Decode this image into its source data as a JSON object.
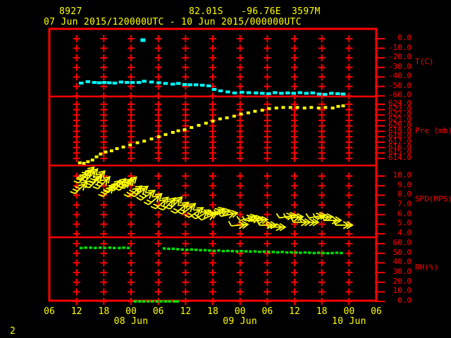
{
  "header": {
    "station_id": "8927",
    "latitude": "82.01S",
    "longitude": "-96.76E",
    "elevation": "3597M",
    "period": "07 Jun 2015/120000UTC - 10 Jun 2015/000000UTC"
  },
  "footer": {
    "page_number": "2"
  },
  "colors": {
    "background": "#000000",
    "axis_red": "#ff0000",
    "text_yellow": "#ffff00",
    "temperature_cyan": "#00ffff",
    "pressure_yellow": "#ffff00",
    "wind_yellow": "#ffff00",
    "humidity_green": "#00e000"
  },
  "chart_data": {
    "type": "line",
    "title": "Station 8927 time series 07 Jun 2015 12UTC - 10 Jun 2015 00UTC",
    "x_axis": {
      "tick_labels": [
        "06",
        "12",
        "18",
        "00",
        "06",
        "12",
        "18",
        "00",
        "06",
        "12",
        "18",
        "00",
        "06"
      ],
      "tick_interval_hours": 6,
      "date_labels": [
        {
          "label": "08 Jun",
          "tick_index": 3
        },
        {
          "label": "09 Jun",
          "tick_index": 7
        },
        {
          "label": "10 Jun",
          "tick_index": 11
        }
      ]
    },
    "panels": [
      {
        "name": "temperature",
        "unit_label": "T(C)",
        "color": "#00ffff",
        "ticks": [
          0.0,
          -10.0,
          -20.0,
          -30.0,
          -40.0,
          -50.0,
          -60.0
        ],
        "series": [
          [
            7.0,
            -46.5
          ],
          [
            8.5,
            -45.0
          ],
          [
            9.9,
            -45.8
          ],
          [
            11.0,
            -46.1
          ],
          [
            12.1,
            -45.8
          ],
          [
            13.2,
            -46.1
          ],
          [
            14.4,
            -46.5
          ],
          [
            15.8,
            -45.4
          ],
          [
            17.1,
            -45.8
          ],
          [
            18.3,
            -45.8
          ],
          [
            19.7,
            -45.8
          ],
          [
            20.9,
            -44.6
          ],
          [
            22.5,
            -45.4
          ],
          [
            24.1,
            -46.1
          ],
          [
            25.6,
            -46.9
          ],
          [
            27.2,
            -47.6
          ],
          [
            28.4,
            -46.9
          ],
          [
            29.8,
            -48.0
          ],
          [
            31.0,
            -48.3
          ],
          [
            32.3,
            -48.3
          ],
          [
            33.7,
            -48.7
          ],
          [
            35.1,
            -49.4
          ],
          [
            36.3,
            -53.1
          ],
          [
            37.7,
            -54.6
          ],
          [
            39.3,
            -55.7
          ],
          [
            40.8,
            -56.8
          ],
          [
            42.4,
            -56.1
          ],
          [
            43.9,
            -56.5
          ],
          [
            45.5,
            -56.8
          ],
          [
            46.9,
            -57.2
          ],
          [
            48.3,
            -57.6
          ],
          [
            49.7,
            -56.5
          ],
          [
            51.1,
            -57.2
          ],
          [
            52.5,
            -56.8
          ],
          [
            53.8,
            -57.2
          ],
          [
            55.2,
            -56.5
          ],
          [
            56.6,
            -57.2
          ],
          [
            58.0,
            -56.8
          ],
          [
            59.4,
            -57.9
          ],
          [
            60.7,
            -58.3
          ],
          [
            62.1,
            -57.2
          ],
          [
            63.5,
            -57.6
          ],
          [
            64.7,
            -57.9
          ]
        ],
        "outliers": [
          [
            20.6,
            -1.5
          ]
        ]
      },
      {
        "name": "pressure",
        "unit_label": "Pre (mb)",
        "color": "#ffff00",
        "ticks": [
          624.0,
          623.0,
          622.0,
          621.0,
          620.0,
          619.0,
          618.0,
          617.0,
          616.0,
          615.0,
          614.0
        ],
        "series": [
          [
            6.7,
            613.2
          ],
          [
            7.6,
            613.1
          ],
          [
            8.5,
            613.4
          ],
          [
            9.5,
            613.7
          ],
          [
            10.4,
            614.3
          ],
          [
            11.3,
            614.8
          ],
          [
            12.4,
            615.2
          ],
          [
            13.7,
            615.4
          ],
          [
            14.9,
            615.8
          ],
          [
            16.3,
            616.1
          ],
          [
            17.8,
            616.5
          ],
          [
            19.4,
            616.9
          ],
          [
            20.9,
            617.2
          ],
          [
            22.5,
            617.6
          ],
          [
            24.1,
            618.0
          ],
          [
            25.6,
            618.4
          ],
          [
            27.2,
            618.8
          ],
          [
            28.4,
            619.1
          ],
          [
            29.8,
            619.3
          ],
          [
            31.3,
            619.7
          ],
          [
            32.9,
            620.1
          ],
          [
            34.5,
            620.5
          ],
          [
            36.0,
            620.9
          ],
          [
            37.6,
            621.3
          ],
          [
            39.1,
            621.5
          ],
          [
            40.7,
            621.8
          ],
          [
            42.2,
            622.2
          ],
          [
            43.8,
            622.4
          ],
          [
            45.3,
            622.7
          ],
          [
            46.9,
            622.9
          ],
          [
            48.4,
            623.2
          ],
          [
            50.0,
            623.3
          ],
          [
            51.5,
            623.4
          ],
          [
            53.1,
            623.4
          ],
          [
            54.6,
            623.4
          ],
          [
            56.2,
            623.3
          ],
          [
            57.7,
            623.4
          ],
          [
            59.3,
            623.3
          ],
          [
            60.8,
            623.4
          ],
          [
            62.4,
            623.3
          ],
          [
            63.6,
            623.6
          ],
          [
            64.7,
            623.7
          ]
        ]
      },
      {
        "name": "wind_speed",
        "unit_label": "SPD(MPS)",
        "color": "#ffff00",
        "ticks": [
          10.0,
          9.0,
          8.0,
          7.0,
          6.0,
          5.0,
          4.0
        ],
        "barbs": [
          [
            7.0,
            8.8,
            45
          ],
          [
            7.8,
            9.9,
            45
          ],
          [
            8.5,
            10.3,
            45
          ],
          [
            9.3,
            10.1,
            45
          ],
          [
            10.1,
            9.4,
            45
          ],
          [
            10.9,
            9.9,
            45
          ],
          [
            12.0,
            9.3,
            45
          ],
          [
            13.2,
            8.5,
            45
          ],
          [
            14.3,
            8.9,
            45
          ],
          [
            15.5,
            9.1,
            45
          ],
          [
            16.8,
            9.1,
            42
          ],
          [
            17.8,
            9.3,
            42
          ],
          [
            18.9,
            8.4,
            40
          ],
          [
            20.2,
            8.4,
            38
          ],
          [
            21.7,
            8.0,
            35
          ],
          [
            23.3,
            7.6,
            40
          ],
          [
            24.8,
            7.2,
            42
          ],
          [
            26.4,
            7.1,
            45
          ],
          [
            27.9,
            7.2,
            45
          ],
          [
            29.2,
            6.7,
            40
          ],
          [
            30.7,
            6.6,
            38
          ],
          [
            32.3,
            6.2,
            35
          ],
          [
            33.8,
            6.0,
            30
          ],
          [
            35.2,
            5.8,
            25
          ],
          [
            36.8,
            6.3,
            20
          ],
          [
            38.0,
            6.2,
            15
          ],
          [
            39.6,
            6.0,
            12
          ],
          [
            41.9,
            4.9,
            5
          ],
          [
            43.8,
            5.6,
            15
          ],
          [
            45.0,
            5.5,
            10
          ],
          [
            46.2,
            5.4,
            6
          ],
          [
            48.1,
            4.9,
            0
          ],
          [
            50.1,
            4.7,
            0
          ],
          [
            52.5,
            5.8,
            10
          ],
          [
            54.0,
            5.7,
            5
          ],
          [
            55.6,
            5.2,
            0
          ],
          [
            57.4,
            5.2,
            0
          ],
          [
            59.0,
            5.8,
            10
          ],
          [
            60.5,
            5.7,
            5
          ],
          [
            62.4,
            5.4,
            0
          ],
          [
            64.9,
            4.9,
            0
          ]
        ]
      },
      {
        "name": "humidity",
        "unit_label": "RH(%)",
        "color": "#00e000",
        "ticks": [
          60.0,
          50.0,
          40.0,
          30.0,
          20.0,
          10.0,
          0.0
        ],
        "segments": [
          [
            [
              7.0,
              55.5
            ],
            [
              8.0,
              55.8
            ],
            [
              9.1,
              55.8
            ],
            [
              10.1,
              55.5
            ],
            [
              11.2,
              55.8
            ],
            [
              12.2,
              55.5
            ],
            [
              13.3,
              55.8
            ],
            [
              14.3,
              55.5
            ],
            [
              15.4,
              55.5
            ],
            [
              16.4,
              55.8
            ],
            [
              17.4,
              55.5
            ]
          ],
          [
            [
              18.9,
              0
            ],
            [
              19.9,
              0
            ],
            [
              20.8,
              0
            ],
            [
              21.8,
              0
            ],
            [
              22.7,
              0
            ],
            [
              23.7,
              0
            ],
            [
              24.6,
              0
            ],
            [
              25.6,
              0
            ],
            [
              26.5,
              0
            ],
            [
              27.5,
              0
            ],
            [
              28.2,
              0
            ]
          ],
          [
            [
              25.3,
              55.0
            ],
            [
              26.3,
              54.6
            ],
            [
              27.3,
              54.6
            ],
            [
              28.3,
              54.2
            ],
            [
              29.3,
              53.9
            ],
            [
              30.3,
              53.6
            ],
            [
              31.3,
              53.9
            ],
            [
              32.3,
              53.6
            ],
            [
              33.3,
              53.2
            ],
            [
              34.3,
              53.2
            ],
            [
              35.3,
              52.9
            ],
            [
              36.3,
              52.5
            ],
            [
              37.3,
              52.9
            ],
            [
              38.3,
              52.2
            ],
            [
              39.3,
              52.5
            ],
            [
              40.3,
              52.2
            ],
            [
              41.3,
              52.0
            ],
            [
              42.3,
              52.2
            ],
            [
              43.3,
              52.0
            ],
            [
              44.3,
              51.8
            ],
            [
              45.3,
              52.0
            ],
            [
              46.3,
              51.5
            ],
            [
              47.3,
              51.8
            ],
            [
              48.3,
              51.5
            ],
            [
              49.3,
              51.3
            ],
            [
              50.3,
              51.0
            ],
            [
              51.3,
              51.3
            ],
            [
              52.3,
              50.8
            ],
            [
              53.3,
              51.0
            ],
            [
              54.3,
              50.8
            ],
            [
              55.3,
              50.5
            ],
            [
              56.3,
              50.8
            ],
            [
              57.3,
              50.5
            ],
            [
              58.3,
              50.2
            ],
            [
              59.3,
              50.5
            ],
            [
              60.3,
              50.2
            ],
            [
              61.3,
              50.0
            ],
            [
              62.3,
              50.2
            ],
            [
              63.3,
              50.5
            ],
            [
              64.3,
              50.2
            ]
          ]
        ]
      }
    ]
  }
}
